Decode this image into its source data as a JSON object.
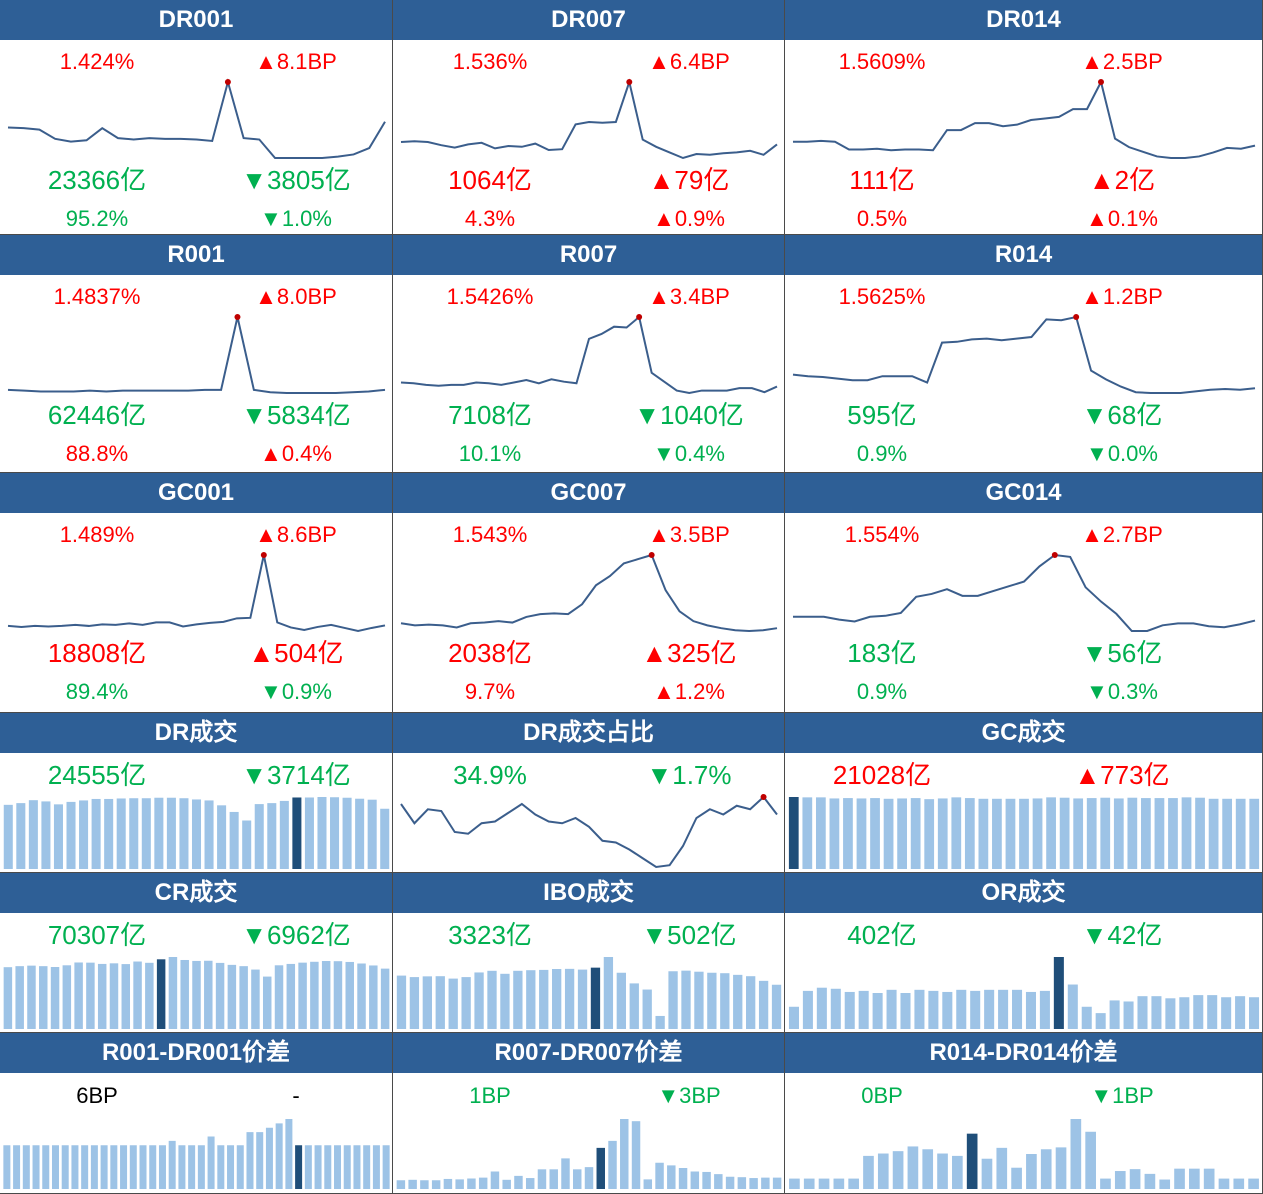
{
  "colors": {
    "header": "#2e5f96",
    "up": "#ff0000",
    "down": "#00b050",
    "line": "#3b5e8c",
    "bar": "#9dc3e6",
    "bar_highlight": "#1f4e79",
    "dot": "#c00000"
  },
  "rates": [
    {
      "title": "DR001",
      "rate": "1.424%",
      "rate_color": "red",
      "change": "▲8.1BP",
      "change_color": "red",
      "volume": "23366亿",
      "volume_color": "green",
      "vol_change": "▼3805亿",
      "vol_change_color": "green",
      "share": "95.2%",
      "share_color": "green",
      "share_change": "▼1.0%",
      "share_change_color": "green"
    },
    {
      "title": "DR007",
      "rate": "1.536%",
      "rate_color": "red",
      "change": "▲6.4BP",
      "change_color": "red",
      "volume": "1064亿",
      "volume_color": "red",
      "vol_change": "▲79亿",
      "vol_change_color": "red",
      "share": "4.3%",
      "share_color": "red",
      "share_change": "▲0.9%",
      "share_change_color": "red"
    },
    {
      "title": "DR014",
      "rate": "1.5609%",
      "rate_color": "red",
      "change": "▲2.5BP",
      "change_color": "red",
      "volume": "111亿",
      "volume_color": "red",
      "vol_change": "▲2亿",
      "vol_change_color": "red",
      "share": "0.5%",
      "share_color": "red",
      "share_change": "▲0.1%",
      "share_change_color": "red"
    },
    {
      "title": "R001",
      "rate": "1.4837%",
      "rate_color": "red",
      "change": "▲8.0BP",
      "change_color": "red",
      "volume": "62446亿",
      "volume_color": "green",
      "vol_change": "▼5834亿",
      "vol_change_color": "green",
      "share": "88.8%",
      "share_color": "red",
      "share_change": "▲0.4%",
      "share_change_color": "red"
    },
    {
      "title": "R007",
      "rate": "1.5426%",
      "rate_color": "red",
      "change": "▲3.4BP",
      "change_color": "red",
      "volume": "7108亿",
      "volume_color": "green",
      "vol_change": "▼1040亿",
      "vol_change_color": "green",
      "share": "10.1%",
      "share_color": "green",
      "share_change": "▼0.4%",
      "share_change_color": "green"
    },
    {
      "title": "R014",
      "rate": "1.5625%",
      "rate_color": "red",
      "change": "▲1.2BP",
      "change_color": "red",
      "volume": "595亿",
      "volume_color": "green",
      "vol_change": "▼68亿",
      "vol_change_color": "green",
      "share": "0.9%",
      "share_color": "green",
      "share_change": "▼0.0%",
      "share_change_color": "green"
    },
    {
      "title": "GC001",
      "rate": "1.489%",
      "rate_color": "red",
      "change": "▲8.6BP",
      "change_color": "red",
      "volume": "18808亿",
      "volume_color": "red",
      "vol_change": "▲504亿",
      "vol_change_color": "red",
      "share": "89.4%",
      "share_color": "green",
      "share_change": "▼0.9%",
      "share_change_color": "green"
    },
    {
      "title": "GC007",
      "rate": "1.543%",
      "rate_color": "red",
      "change": "▲3.5BP",
      "change_color": "red",
      "volume": "2038亿",
      "volume_color": "red",
      "vol_change": "▲325亿",
      "vol_change_color": "red",
      "share": "9.7%",
      "share_color": "red",
      "share_change": "▲1.2%",
      "share_change_color": "red"
    },
    {
      "title": "GC014",
      "rate": "1.554%",
      "rate_color": "red",
      "change": "▲2.7BP",
      "change_color": "red",
      "volume": "183亿",
      "volume_color": "green",
      "vol_change": "▼56亿",
      "vol_change_color": "green",
      "share": "0.9%",
      "share_color": "green",
      "share_change": "▼0.3%",
      "share_change_color": "green"
    }
  ],
  "volumes": [
    {
      "title": "DR成交",
      "value": "24555亿",
      "value_color": "green",
      "change": "▼3714亿",
      "change_color": "green"
    },
    {
      "title": "DR成交占比",
      "value": "34.9%",
      "value_color": "green",
      "change": "▼1.7%",
      "change_color": "green"
    },
    {
      "title": "GC成交",
      "value": "21028亿",
      "value_color": "red",
      "change": "▲773亿",
      "change_color": "red"
    },
    {
      "title": "CR成交",
      "value": "70307亿",
      "value_color": "green",
      "change": "▼6962亿",
      "change_color": "green"
    },
    {
      "title": "IBO成交",
      "value": "3323亿",
      "value_color": "green",
      "change": "▼502亿",
      "change_color": "green"
    },
    {
      "title": "OR成交",
      "value": "402亿",
      "value_color": "green",
      "change": "▼42亿",
      "change_color": "green"
    }
  ],
  "spreads": [
    {
      "title": "R001-DR001价差",
      "value": "6BP",
      "value_color": "black",
      "change": "-",
      "change_color": "black"
    },
    {
      "title": "R007-DR007价差",
      "value": "1BP",
      "value_color": "green",
      "change": "▼3BP",
      "change_color": "green"
    },
    {
      "title": "R014-DR014价差",
      "value": "0BP",
      "value_color": "green",
      "change": "▼1BP",
      "change_color": "green"
    }
  ],
  "chart_data": [
    {
      "type": "line",
      "title": "DR001",
      "values": [
        1.36,
        1.359,
        1.357,
        1.344,
        1.34,
        1.342,
        1.359,
        1.345,
        1.343,
        1.345,
        1.344,
        1.344,
        1.343,
        1.341,
        1.424,
        1.345,
        1.343,
        1.317,
        1.317,
        1.317,
        1.317,
        1.319,
        1.322,
        1.331,
        1.368
      ],
      "highlight_index": 14
    },
    {
      "type": "line",
      "title": "DR007",
      "values": [
        1.461,
        1.462,
        1.461,
        1.457,
        1.454,
        1.458,
        1.46,
        1.453,
        1.456,
        1.455,
        1.459,
        1.451,
        1.452,
        1.483,
        1.486,
        1.485,
        1.486,
        1.536,
        1.464,
        1.455,
        1.448,
        1.441,
        1.446,
        1.445,
        1.447,
        1.448,
        1.45,
        1.445,
        1.458
      ],
      "highlight_index": 17
    },
    {
      "type": "line",
      "title": "DR014",
      "values": [
        1.484,
        1.484,
        1.485,
        1.484,
        1.474,
        1.474,
        1.475,
        1.473,
        1.474,
        1.474,
        1.473,
        1.499,
        1.499,
        1.508,
        1.508,
        1.504,
        1.506,
        1.512,
        1.514,
        1.516,
        1.526,
        1.526,
        1.561,
        1.488,
        1.477,
        1.471,
        1.465,
        1.463,
        1.463,
        1.465,
        1.47,
        1.476,
        1.475,
        1.479
      ],
      "highlight_index": 22
    },
    {
      "type": "line",
      "title": "R001",
      "values": [
        1.39,
        1.389,
        1.388,
        1.388,
        1.388,
        1.389,
        1.388,
        1.389,
        1.389,
        1.389,
        1.389,
        1.389,
        1.39,
        1.39,
        1.484,
        1.39,
        1.387,
        1.386,
        1.386,
        1.386,
        1.386,
        1.387,
        1.388,
        1.39
      ],
      "highlight_index": 14
    },
    {
      "type": "line",
      "title": "R007",
      "values": [
        1.462,
        1.461,
        1.459,
        1.458,
        1.459,
        1.459,
        1.462,
        1.461,
        1.459,
        1.462,
        1.465,
        1.461,
        1.466,
        1.463,
        1.461,
        1.516,
        1.522,
        1.531,
        1.53,
        1.543,
        1.474,
        1.463,
        1.452,
        1.449,
        1.452,
        1.452,
        1.452,
        1.455,
        1.455,
        1.45,
        1.457
      ],
      "highlight_index": 19
    },
    {
      "type": "line",
      "title": "R014",
      "values": [
        1.481,
        1.479,
        1.478,
        1.476,
        1.474,
        1.474,
        1.479,
        1.479,
        1.479,
        1.471,
        1.521,
        1.522,
        1.525,
        1.526,
        1.524,
        1.526,
        1.528,
        1.55,
        1.549,
        1.553,
        1.486,
        1.475,
        1.466,
        1.459,
        1.458,
        1.458,
        1.458,
        1.46,
        1.462,
        1.463,
        1.462,
        1.464
      ],
      "highlight_index": 19
    },
    {
      "type": "line",
      "title": "GC001",
      "values": [
        1.349,
        1.347,
        1.349,
        1.348,
        1.349,
        1.351,
        1.349,
        1.352,
        1.351,
        1.354,
        1.351,
        1.356,
        1.356,
        1.348,
        1.352,
        1.355,
        1.357,
        1.364,
        1.365,
        1.489,
        1.356,
        1.346,
        1.341,
        1.347,
        1.351,
        1.345,
        1.339,
        1.345,
        1.35
      ],
      "highlight_index": 19
    },
    {
      "type": "line",
      "title": "GC007",
      "values": [
        1.447,
        1.444,
        1.445,
        1.444,
        1.441,
        1.447,
        1.448,
        1.45,
        1.448,
        1.456,
        1.46,
        1.461,
        1.46,
        1.474,
        1.501,
        1.514,
        1.532,
        1.538,
        1.544,
        1.494,
        1.464,
        1.45,
        1.444,
        1.44,
        1.437,
        1.436,
        1.437,
        1.44
      ],
      "highlight_index": 18
    },
    {
      "type": "line",
      "title": "GC014",
      "values": [
        1.49,
        1.49,
        1.49,
        1.487,
        1.485,
        1.49,
        1.491,
        1.494,
        1.511,
        1.514,
        1.519,
        1.512,
        1.512,
        1.517,
        1.522,
        1.527,
        1.543,
        1.555,
        1.553,
        1.521,
        1.506,
        1.493,
        1.475,
        1.475,
        1.481,
        1.483,
        1.483,
        1.48,
        1.479,
        1.482,
        1.486
      ],
      "highlight_index": 17
    },
    {
      "type": "bar",
      "title": "DR成交",
      "values": [
        26200,
        26900,
        28100,
        27600,
        26400,
        27400,
        28000,
        28600,
        28600,
        28800,
        28900,
        28900,
        29100,
        29100,
        28900,
        28400,
        28000,
        26000,
        23300,
        19800,
        26500,
        26900,
        27800,
        29200,
        29200,
        29400,
        29300,
        29100,
        28700,
        28300,
        24600
      ],
      "highlight_index": 23
    },
    {
      "type": "line",
      "title": "DR成交占比",
      "values": [
        37.6,
        36.5,
        37.3,
        37.2,
        36.0,
        35.9,
        36.5,
        36.6,
        37.1,
        37.6,
        37.0,
        36.6,
        36.5,
        36.8,
        36.3,
        35.5,
        35.4,
        35.0,
        34.5,
        34.0,
        34.1,
        35.2,
        36.8,
        37.3,
        37.0,
        37.5,
        37.3,
        38.0,
        37.0
      ],
      "highlight_index": 27
    },
    {
      "type": "bar",
      "title": "GC成交",
      "values": [
        20100,
        20000,
        20000,
        19700,
        19800,
        19700,
        19800,
        19600,
        19700,
        19800,
        19500,
        19700,
        20000,
        19800,
        19600,
        19600,
        19600,
        19600,
        19700,
        20000,
        19900,
        19700,
        19800,
        19900,
        19700,
        19900,
        19800,
        19800,
        19800,
        20000,
        19900,
        19600,
        19600,
        19600,
        19600
      ],
      "highlight_index": 0
    },
    {
      "type": "bar",
      "title": "CR成交",
      "values": [
        72300,
        73500,
        74100,
        73500,
        72500,
        74500,
        77800,
        77600,
        76100,
        76800,
        75900,
        78900,
        77400,
        81500,
        84200,
        80700,
        79600,
        79800,
        77300,
        75000,
        73500,
        69500,
        61300,
        74500,
        76100,
        77600,
        78600,
        79500,
        79300,
        78400,
        76600,
        74300,
        70600
      ],
      "highlight_index": 13
    },
    {
      "type": "bar",
      "title": "IBO成交",
      "values": [
        3560,
        3460,
        3510,
        3520,
        3360,
        3460,
        3770,
        3880,
        3680,
        3880,
        3920,
        3940,
        4000,
        4010,
        3960,
        4090,
        4800,
        3750,
        3040,
        2630,
        870,
        3850,
        3890,
        3820,
        3750,
        3720,
        3610,
        3520,
        3210,
        2950
      ],
      "highlight_index": 15
    },
    {
      "type": "bar",
      "title": "OR成交",
      "values": [
        210,
        360,
        390,
        380,
        350,
        360,
        340,
        370,
        340,
        370,
        360,
        350,
        370,
        360,
        370,
        370,
        370,
        350,
        360,
        680,
        420,
        210,
        150,
        270,
        260,
        310,
        310,
        290,
        300,
        320,
        320,
        300,
        310,
        300
      ],
      "highlight_index": 19
    },
    {
      "type": "bar",
      "title": "R001-DR001价差",
      "values": [
        1,
        1,
        1,
        1,
        1,
        1,
        1,
        1,
        1,
        1,
        1,
        1,
        1,
        1,
        1,
        1,
        1,
        1.1,
        1,
        1,
        1,
        1.2,
        1,
        1,
        1,
        1.3,
        1.3,
        1.4,
        1.5,
        1.6,
        1,
        1,
        1,
        1,
        1,
        1,
        1,
        1,
        1,
        1
      ],
      "highlight_index": 30
    },
    {
      "type": "bar",
      "title": "R007-DR007价差",
      "values": [
        2,
        2.1,
        2,
        2,
        2.3,
        2.2,
        2.4,
        2.6,
        4,
        2.1,
        3,
        2.5,
        4.5,
        4.5,
        7,
        4.5,
        5,
        9.4,
        11,
        16,
        15.5,
        2.2,
        6,
        5.4,
        4.8,
        4,
        3.9,
        3.4,
        2.8,
        2.7,
        2.5,
        2.6,
        2.6
      ],
      "highlight_index": 17
    },
    {
      "type": "bar",
      "title": "R014-DR014价差",
      "values": [
        2.2,
        2.2,
        2.2,
        2.2,
        2.2,
        7,
        7.5,
        8,
        9,
        8.4,
        7.5,
        7,
        11.7,
        6.4,
        8.7,
        4.5,
        7.4,
        8.4,
        8.8,
        14.8,
        12.1,
        2.2,
        3.8,
        4.2,
        3.2,
        2,
        4.3,
        4.3,
        4.3,
        2.2,
        2.2,
        2.2
      ],
      "highlight_index": 12
    }
  ]
}
